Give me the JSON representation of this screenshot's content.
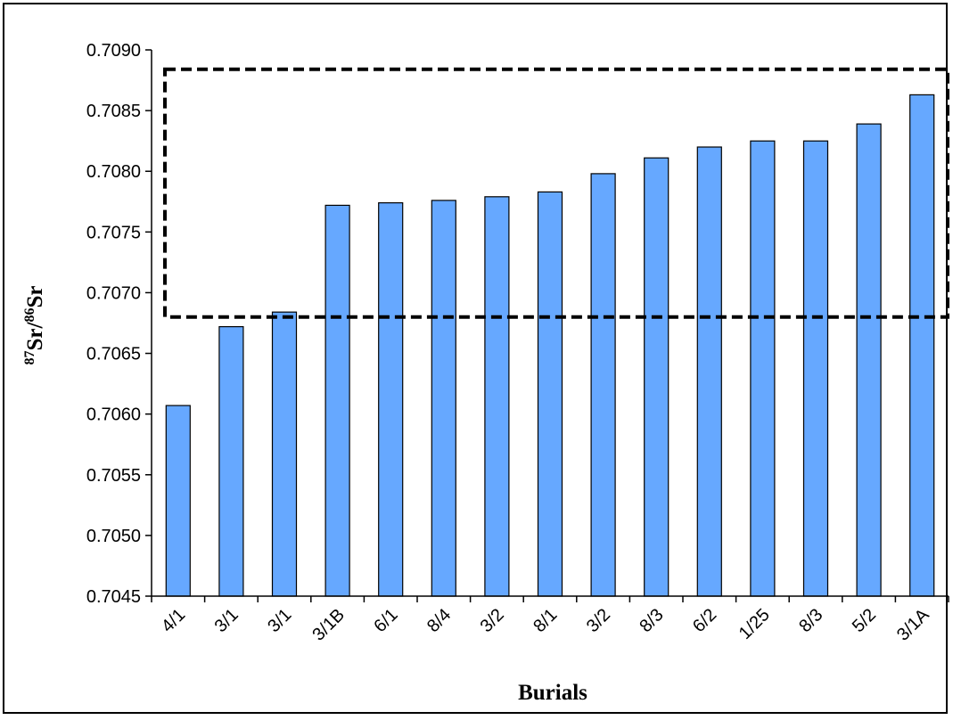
{
  "colors": {
    "bar_fill": "#66a8ff",
    "bar_stroke": "#000000",
    "axis": "#000000",
    "box_stroke": "#000000"
  },
  "chart_data": {
    "type": "bar",
    "title": "",
    "xlabel": "Burials",
    "ylabel": {
      "sup1": "87",
      "base1": "Sr/",
      "sup2": "86",
      "base2": "Sr"
    },
    "categories": [
      "4/1",
      "3/1",
      "3/1",
      "3/1B",
      "6/1",
      "8/4",
      "3/2",
      "8/1",
      "3/2",
      "8/3",
      "6/2",
      "1/25",
      "8/3",
      "5/2",
      "3/1A"
    ],
    "values": [
      0.70607,
      0.70672,
      0.70684,
      0.70772,
      0.70774,
      0.70776,
      0.70779,
      0.70783,
      0.70798,
      0.70811,
      0.7082,
      0.70825,
      0.70825,
      0.70839,
      0.70863
    ],
    "ylim": [
      0.7045,
      0.709
    ],
    "yticks": [
      "0.7045",
      "0.7050",
      "0.7055",
      "0.7060",
      "0.7065",
      "0.7070",
      "0.7075",
      "0.7080",
      "0.7085",
      "0.7090"
    ],
    "grid": false,
    "legend": "none",
    "annotations": [
      {
        "type": "dashed-box",
        "y_range": [
          0.7068,
          0.70884
        ],
        "x_range_categories": [
          "4/1",
          "3/1A"
        ]
      }
    ]
  }
}
